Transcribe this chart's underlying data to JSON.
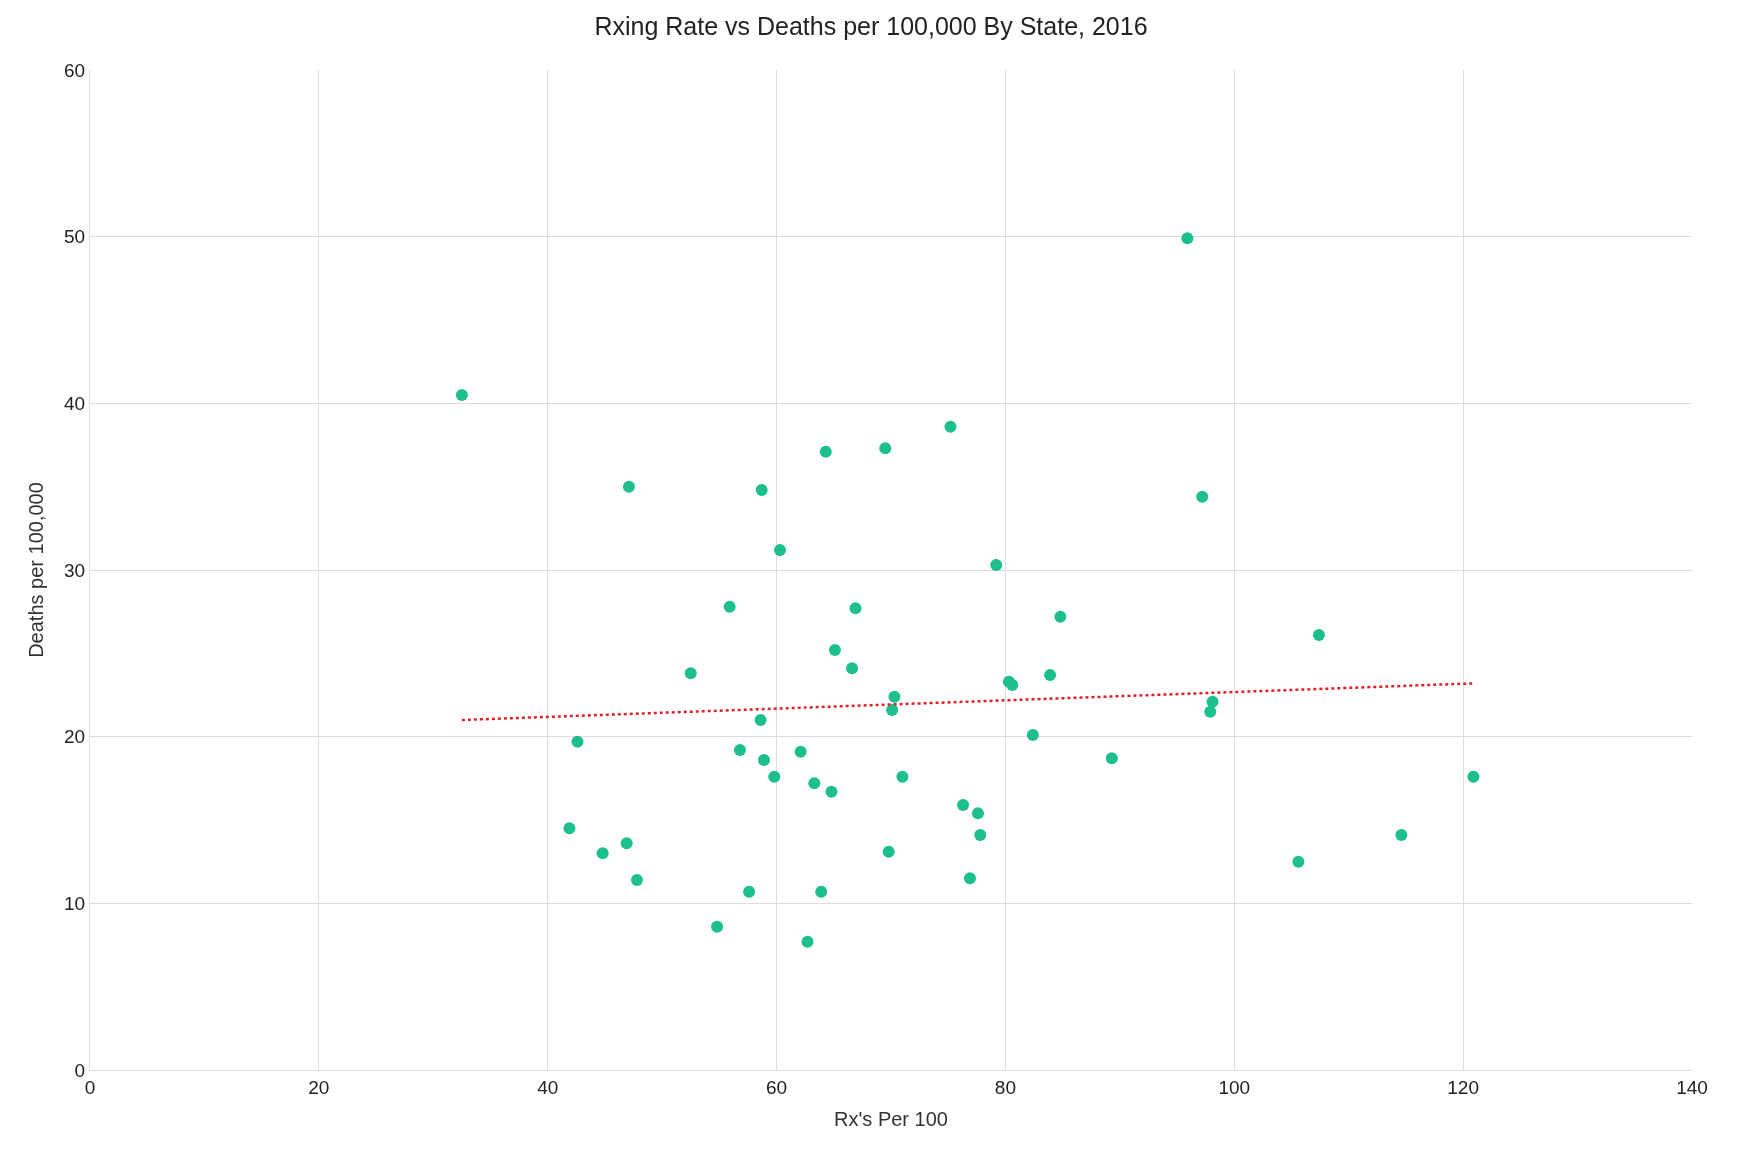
{
  "chart_data": {
    "type": "scatter",
    "title": "Rxing Rate vs Deaths per 100,000 By State, 2016",
    "xlabel": "Rx's Per 100",
    "ylabel": "Deaths per 100,000",
    "xlim": [
      0,
      140
    ],
    "xticks": [
      0,
      20,
      40,
      60,
      80,
      100,
      120,
      140
    ],
    "ylim": [
      0,
      60
    ],
    "yticks": [
      0,
      10,
      20,
      30,
      40,
      50,
      60
    ],
    "grid": true,
    "marker": "circle",
    "series": [
      {
        "color": "#1dbf8e",
        "x": [
          32.5,
          47.1,
          42.6,
          41.9,
          44.8,
          46.9,
          47.8,
          52.5,
          54.8,
          55.9,
          56.8,
          57.6,
          58.6,
          58.7,
          58.9,
          59.8,
          60.3,
          62.1,
          62.7,
          63.3,
          63.9,
          64.3,
          64.8,
          65.1,
          66.6,
          66.9,
          69.5,
          69.8,
          70.1,
          70.3,
          71.0,
          75.2,
          76.3,
          76.9,
          77.6,
          77.8,
          79.2,
          80.3,
          80.6,
          82.4,
          83.9,
          84.8,
          89.3,
          95.9,
          97.2,
          97.9,
          98.1,
          105.6,
          107.4,
          114.6,
          120.9
        ],
        "values": [
          40.5,
          35.0,
          19.7,
          14.5,
          13.0,
          13.6,
          11.4,
          23.8,
          8.6,
          27.8,
          19.2,
          10.7,
          21.0,
          34.8,
          18.6,
          17.6,
          31.2,
          19.1,
          7.7,
          17.2,
          10.7,
          37.1,
          16.7,
          25.2,
          24.1,
          27.7,
          37.3,
          13.1,
          21.6,
          22.4,
          17.6,
          38.6,
          15.9,
          11.5,
          15.4,
          14.1,
          30.3,
          23.3,
          23.1,
          20.1,
          23.7,
          27.2,
          18.7,
          49.9,
          34.4,
          21.5,
          22.1,
          12.5,
          26.1,
          14.1,
          17.6
        ]
      },
      {
        "type": "line",
        "color": "#e0202a",
        "line_style": "dotted",
        "marker": "none",
        "x": [
          32.5,
          121
        ],
        "values": [
          21.0,
          23.2
        ]
      }
    ]
  }
}
